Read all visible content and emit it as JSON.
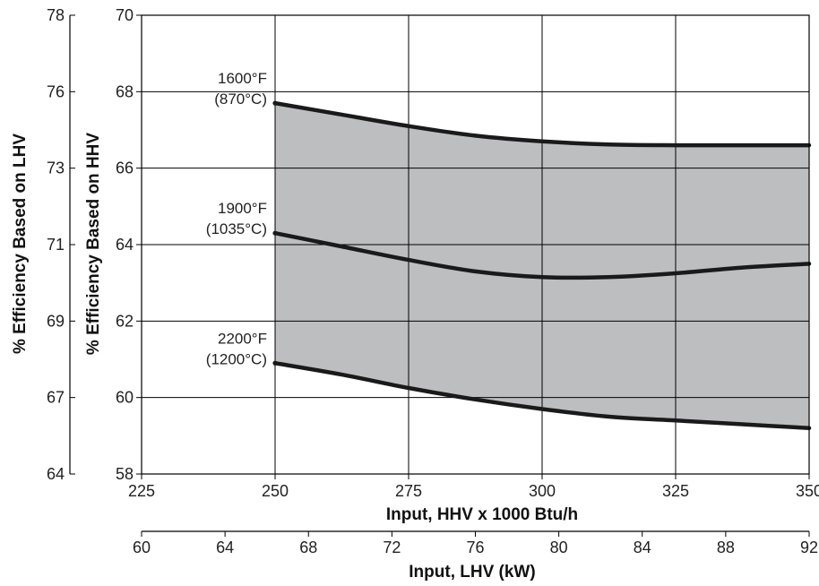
{
  "chart_data": {
    "type": "line",
    "title": "",
    "xlabel": "Input, HHV x 1000 Btu/h",
    "x2label": "Input, LHV (kW)",
    "ylabel": "% Efficiency Based on HHV",
    "y2label": "% Efficiency Based on LHV",
    "xlim": [
      225,
      350
    ],
    "ylim": [
      58,
      70
    ],
    "x_ticks": [
      "225",
      "250",
      "275",
      "300",
      "325",
      "350"
    ],
    "y_ticks": [
      "58",
      "60",
      "62",
      "64",
      "66",
      "68",
      "70"
    ],
    "x2lim": [
      60,
      92
    ],
    "x2_ticks": [
      "60",
      "64",
      "68",
      "72",
      "76",
      "80",
      "84",
      "88",
      "92"
    ],
    "y2_ticks": [
      {
        "label": "64",
        "hhv": 58
      },
      {
        "label": "67",
        "hhv": 60
      },
      {
        "label": "69",
        "hhv": 62
      },
      {
        "label": "71",
        "hhv": 64
      },
      {
        "label": "73",
        "hhv": 66
      },
      {
        "label": "76",
        "hhv": 68
      },
      {
        "label": "78",
        "hhv": 70
      }
    ],
    "grid": true,
    "shaded_band": {
      "from_series": 0,
      "to_series": 2,
      "color": "#bcbec0"
    },
    "series": [
      {
        "name_line1": "1600°F",
        "name_line2": "(870°C)",
        "x": [
          250,
          262.5,
          275,
          287.5,
          300,
          312.5,
          325,
          337.5,
          350
        ],
        "y": [
          67.7,
          67.4,
          67.1,
          66.85,
          66.7,
          66.62,
          66.6,
          66.6,
          66.6
        ]
      },
      {
        "name_line1": "1900°F",
        "name_line2": "(1035°C)",
        "x": [
          250,
          262.5,
          275,
          287.5,
          300,
          312.5,
          325,
          337.5,
          350
        ],
        "y": [
          64.3,
          63.95,
          63.6,
          63.3,
          63.15,
          63.15,
          63.25,
          63.4,
          63.5
        ]
      },
      {
        "name_line1": "2200°F",
        "name_line2": "(1200°C)",
        "x": [
          250,
          262.5,
          275,
          287.5,
          300,
          312.5,
          325,
          337.5,
          350
        ],
        "y": [
          60.9,
          60.6,
          60.25,
          59.95,
          59.7,
          59.5,
          59.4,
          59.3,
          59.2
        ]
      }
    ],
    "line_color": "#1a1a1a",
    "grid_color": "#000000"
  }
}
